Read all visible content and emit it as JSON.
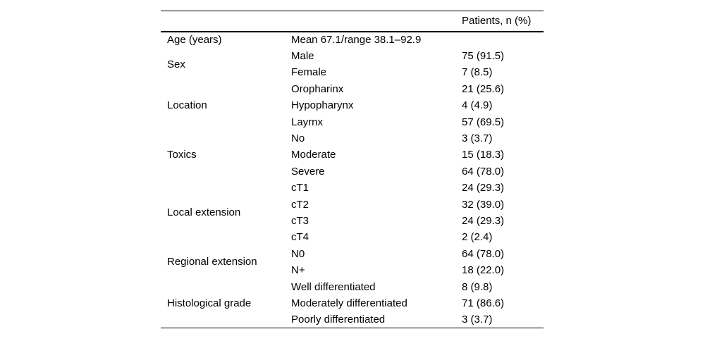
{
  "table": {
    "header": {
      "col3": "Patients, n (%)"
    },
    "groups": [
      {
        "label": "Age (years)",
        "rows": [
          {
            "sub": "Mean 67.1/range 38.1–92.9",
            "value": ""
          }
        ]
      },
      {
        "label": "Sex",
        "rows": [
          {
            "sub": "Male",
            "value": "75 (91.5)"
          },
          {
            "sub": "Female",
            "value": "7 (8.5)"
          }
        ]
      },
      {
        "label": "Location",
        "rows": [
          {
            "sub": "Oropharinx",
            "value": "21 (25.6)"
          },
          {
            "sub": "Hypopharynx",
            "value": "4 (4.9)"
          },
          {
            "sub": "Layrnx",
            "value": "57 (69.5)"
          }
        ]
      },
      {
        "label": "Toxics",
        "rows": [
          {
            "sub": "No",
            "value": "3 (3.7)"
          },
          {
            "sub": "Moderate",
            "value": "15 (18.3)"
          },
          {
            "sub": "Severe",
            "value": "64 (78.0)"
          }
        ]
      },
      {
        "label": "Local extension",
        "rows": [
          {
            "sub": "cT1",
            "value": "24 (29.3)"
          },
          {
            "sub": "cT2",
            "value": "32 (39.0)"
          },
          {
            "sub": "cT3",
            "value": "24 (29.3)"
          },
          {
            "sub": "cT4",
            "value": "2 (2.4)"
          }
        ]
      },
      {
        "label": "Regional extension",
        "rows": [
          {
            "sub": "N0",
            "value": "64 (78.0)"
          },
          {
            "sub": "N+",
            "value": "18 (22.0)"
          }
        ]
      },
      {
        "label": "Histological grade",
        "rows": [
          {
            "sub": "Well differentiated",
            "value": "8 (9.8)"
          },
          {
            "sub": "Moderately differentiated",
            "value": "71 (86.6)"
          },
          {
            "sub": "Poorly differentiated",
            "value": "3 (3.7)"
          }
        ]
      }
    ]
  }
}
